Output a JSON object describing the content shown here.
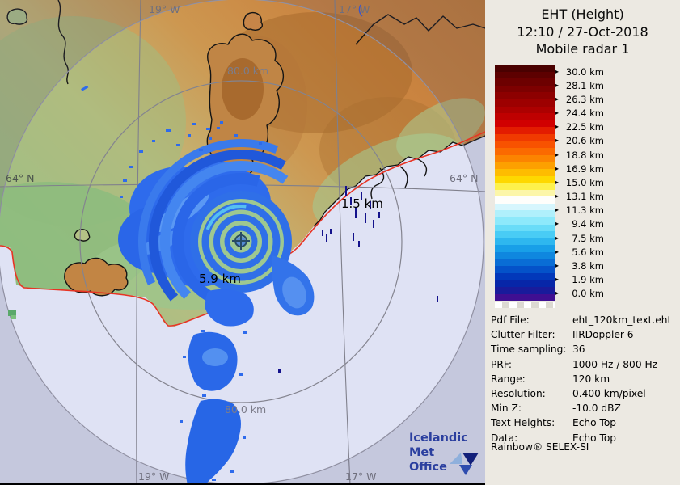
{
  "header": {
    "line1": "EHT (Height)",
    "line2": "12:10 / 27-Oct-2018",
    "line3": "Mobile radar 1"
  },
  "colorbar": {
    "tick_labels": [
      "30.0 km",
      "28.1 km",
      "26.3 km",
      "24.4 km",
      "22.5 km",
      "20.6 km",
      "18.8 km",
      "16.9 km",
      "15.0 km",
      "13.1 km",
      "11.3 km",
      "9.4 km",
      "7.5 km",
      "5.6 km",
      "3.8 km",
      "1.9 km",
      "0.0 km"
    ],
    "band_colors": [
      "#4a0000",
      "#5d0000",
      "#6d0000",
      "#7d0000",
      "#8d0000",
      "#9d0000",
      "#ad0000",
      "#bf0000",
      "#d10000",
      "#e31c00",
      "#f03a00",
      "#f85200",
      "#fb6a00",
      "#fc8400",
      "#fda000",
      "#febc00",
      "#fed800",
      "#fdf14c",
      "#fcf6a8",
      "#fefefb",
      "#d6f6fd",
      "#b0f0fc",
      "#8de9fb",
      "#69dcf8",
      "#49ccf5",
      "#2eb7ef",
      "#189fe8",
      "#0f87df",
      "#096dd5",
      "#0452c9",
      "#0238ba",
      "#0726a8",
      "#191b9b",
      "#3f0f92"
    ]
  },
  "metadata": {
    "rows": [
      {
        "label": "Pdf File:",
        "value": "eht_120km_text.eht"
      },
      {
        "label": "Clutter Filter:",
        "value": "IIRDoppler 6"
      },
      {
        "label": "Time sampling:",
        "value": "36"
      },
      {
        "label": "PRF:",
        "value": "1000 Hz / 800 Hz"
      },
      {
        "label": "Range:",
        "value": "120 km"
      },
      {
        "label": "Resolution:",
        "value": "0.400 km/pixel"
      },
      {
        "label": "Min Z:",
        "value": "-10.0 dBZ"
      },
      {
        "label": "Text Heights:",
        "value": "Echo Top"
      },
      {
        "label": "Data:",
        "value": "Echo Top"
      }
    ]
  },
  "brand_line": "Rainbow® SELEX-SI",
  "map": {
    "grid_labels": {
      "lon_w_top": "19° W",
      "lon_e_top": "17° W",
      "lon_w_bottom": "19° W",
      "lon_e_bottom": "17° W",
      "lat_left": "64° N",
      "lat_right": "64° N"
    },
    "range_ring_labels": {
      "top": "80.0 km",
      "bottom": "80.0 km"
    },
    "echo_height_labels": {
      "primary": "5.9 km",
      "secondary": "1.5 km"
    },
    "logo": {
      "line1": "Icelandic Met",
      "line2": "Office"
    }
  },
  "colors": {
    "panel_bg": "#ece9e2",
    "coast_road_red": "#e83424",
    "sea": "#dfe2f4",
    "echo_blue": "#2e6bec",
    "logo_blue": "#2b3f9f"
  }
}
